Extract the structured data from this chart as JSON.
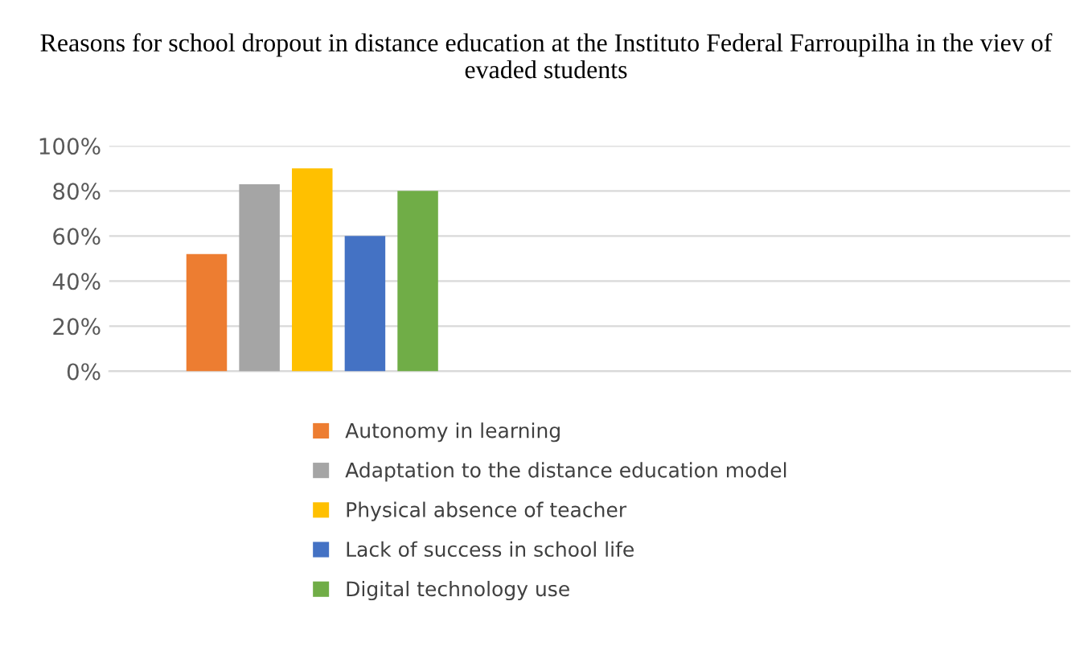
{
  "chart_data": {
    "type": "bar",
    "title": "Reasons for school dropout in distance education at the Instituto Federal Farroupilha in the viev of evaded students",
    "categories": [
      null
    ],
    "series": [
      {
        "name": "Autonomy in learning",
        "color": "#ed7d31",
        "values": [
          52
        ]
      },
      {
        "name": "Adaptation to the distance education model",
        "color": "#a5a5a5",
        "values": [
          83
        ]
      },
      {
        "name": "Physical absence of teacher",
        "color": "#ffc000",
        "values": [
          90
        ]
      },
      {
        "name": "Lack of success in school life",
        "color": "#4472c4",
        "values": [
          60
        ]
      },
      {
        "name": "Digital technology use",
        "color": "#70ad47",
        "values": [
          80
        ]
      }
    ],
    "ylim": [
      0,
      100
    ],
    "yticks": [
      {
        "value": 0,
        "label": "0%"
      },
      {
        "value": 20,
        "label": "20%"
      },
      {
        "value": 40,
        "label": "40%"
      },
      {
        "value": 60,
        "label": "60%"
      },
      {
        "value": 80,
        "label": "80%"
      },
      {
        "value": 100,
        "label": "100%"
      }
    ],
    "grid": "y",
    "legend": "bottom",
    "tick_labels": "y"
  }
}
